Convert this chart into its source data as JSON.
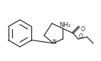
{
  "bg_color": "#ffffff",
  "line_color": "#2a2a2a",
  "text_color": "#2a2a2a",
  "figsize": [
    1.42,
    0.86
  ],
  "dpi": 100,
  "N_label": "N",
  "O_label": "O",
  "O2_label": "O",
  "NH2_label": "NH₂",
  "lw": 0.9
}
